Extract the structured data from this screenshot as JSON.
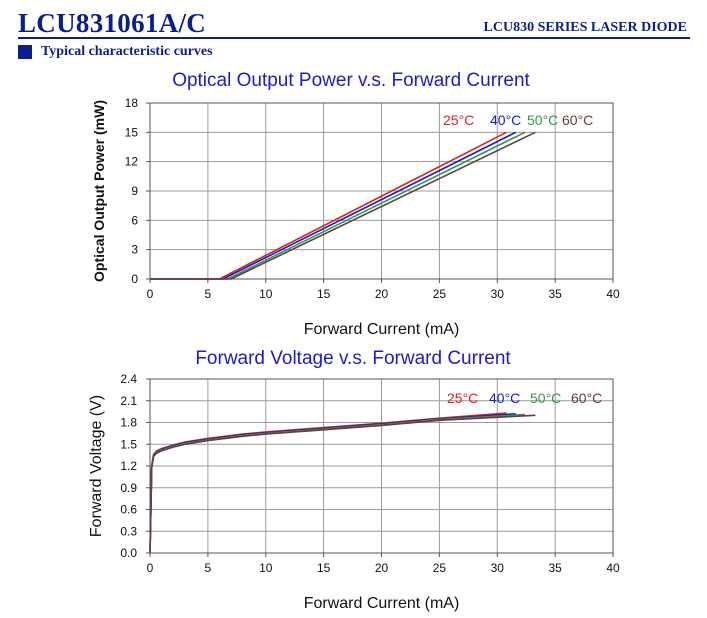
{
  "header": {
    "part_number": "LCU831061A/C",
    "series_name": "LCU830 SERIES LASER DIODE",
    "section_title": "Typical characteristic curves"
  },
  "colors": {
    "brand": "#0a1f8f",
    "title": "#1c1cc8",
    "t25": "#e02020",
    "t40": "#1a1ad0",
    "t50": "#2e9a4a",
    "t60": "#6b3b3b"
  },
  "chart_data": [
    {
      "type": "line",
      "title": "Optical Output Power v.s. Forward Current",
      "xlabel": "Forward Current (mA)",
      "ylabel": "Optical Output Power (mW)",
      "xlim": [
        0,
        40
      ],
      "ylim": [
        0,
        18
      ],
      "xticks": [
        "0",
        "5",
        "10",
        "15",
        "20",
        "25",
        "30",
        "35",
        "40"
      ],
      "yticks": [
        "0",
        "3",
        "6",
        "9",
        "12",
        "15",
        "18"
      ],
      "grid": true,
      "legend_position": "top-right",
      "series": [
        {
          "name": "25°C",
          "color": "#e02020",
          "x": [
            0,
            6.0,
            30.8
          ],
          "y": [
            0,
            0,
            15.0
          ]
        },
        {
          "name": "40°C",
          "color": "#1a1ad0",
          "x": [
            0,
            6.3,
            31.6
          ],
          "y": [
            0,
            0,
            15.0
          ]
        },
        {
          "name": "50°C",
          "color": "#2e9a4a",
          "x": [
            0,
            6.7,
            32.4
          ],
          "y": [
            0,
            0,
            15.0
          ]
        },
        {
          "name": "60°C",
          "color": "#6b3b3b",
          "x": [
            0,
            7.0,
            33.3
          ],
          "y": [
            0,
            0,
            15.0
          ]
        }
      ]
    },
    {
      "type": "line",
      "title": "Forward Voltage v.s. Forward Current",
      "xlabel": "Forward Current (mA)",
      "ylabel": "Forward Voltage (V)",
      "xlim": [
        0,
        40
      ],
      "ylim": [
        0,
        2.4
      ],
      "xticks": [
        "0",
        "5",
        "10",
        "15",
        "20",
        "25",
        "30",
        "35",
        "40"
      ],
      "yticks": [
        "0.0",
        "0.3",
        "0.6",
        "0.9",
        "1.2",
        "1.5",
        "1.8",
        "2.1",
        "2.4"
      ],
      "grid": true,
      "legend_position": "top-right",
      "series": [
        {
          "name": "25°C",
          "color": "#e02020",
          "x": [
            0,
            0.05,
            0.15,
            0.3,
            0.6,
            1,
            2,
            3,
            5,
            8,
            10,
            15,
            20,
            25,
            30.8
          ],
          "y": [
            0,
            0.4,
            1.2,
            1.36,
            1.41,
            1.44,
            1.49,
            1.53,
            1.58,
            1.64,
            1.67,
            1.73,
            1.79,
            1.86,
            1.93
          ]
        },
        {
          "name": "40°C",
          "color": "#1a1ad0",
          "x": [
            0,
            0.05,
            0.15,
            0.3,
            0.6,
            1,
            2,
            3,
            5,
            8,
            10,
            15,
            20,
            25,
            31.6
          ],
          "y": [
            0,
            0.4,
            1.19,
            1.35,
            1.4,
            1.43,
            1.48,
            1.52,
            1.57,
            1.63,
            1.66,
            1.72,
            1.78,
            1.85,
            1.92
          ]
        },
        {
          "name": "50°C",
          "color": "#2e9a4a",
          "x": [
            0,
            0.05,
            0.15,
            0.3,
            0.6,
            1,
            2,
            3,
            5,
            8,
            10,
            15,
            20,
            25,
            32.4
          ],
          "y": [
            0,
            0.4,
            1.18,
            1.34,
            1.39,
            1.42,
            1.47,
            1.51,
            1.56,
            1.62,
            1.65,
            1.71,
            1.77,
            1.84,
            1.91
          ]
        },
        {
          "name": "60°C",
          "color": "#6b3b3b",
          "x": [
            0,
            0.05,
            0.15,
            0.3,
            0.6,
            1,
            2,
            3,
            5,
            8,
            10,
            15,
            20,
            25,
            33.3
          ],
          "y": [
            0,
            0.4,
            1.17,
            1.33,
            1.38,
            1.41,
            1.46,
            1.5,
            1.55,
            1.61,
            1.64,
            1.7,
            1.76,
            1.83,
            1.9
          ]
        }
      ]
    }
  ]
}
